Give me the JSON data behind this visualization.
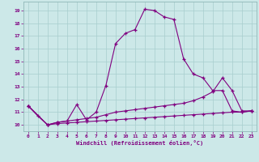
{
  "xlabel": "Windchill (Refroidissement éolien,°C)",
  "background_color": "#cce8e8",
  "line_color": "#800080",
  "xlim": [
    -0.5,
    23.5
  ],
  "ylim": [
    9.5,
    19.7
  ],
  "yticks": [
    10,
    11,
    12,
    13,
    14,
    15,
    16,
    17,
    18,
    19
  ],
  "xticks": [
    0,
    1,
    2,
    3,
    4,
    5,
    6,
    7,
    8,
    9,
    10,
    11,
    12,
    13,
    14,
    15,
    16,
    17,
    18,
    19,
    20,
    21,
    22,
    23
  ],
  "series1_x": [
    0,
    1,
    2,
    3,
    4,
    5,
    6,
    7,
    8,
    9,
    10,
    11,
    12,
    13,
    14,
    15,
    16,
    17,
    18,
    19,
    20,
    21,
    22,
    23
  ],
  "series1_y": [
    11.5,
    10.7,
    10.0,
    10.2,
    10.3,
    11.6,
    10.4,
    11.0,
    13.1,
    16.4,
    17.2,
    17.5,
    19.1,
    19.0,
    18.5,
    18.3,
    15.2,
    14.0,
    13.7,
    12.7,
    12.7,
    11.1,
    11.0,
    11.1
  ],
  "series2_x": [
    0,
    2,
    3,
    4,
    5,
    6,
    7,
    8,
    9,
    10,
    11,
    12,
    13,
    14,
    15,
    16,
    17,
    18,
    19,
    20,
    21,
    22,
    23
  ],
  "series2_y": [
    11.5,
    10.0,
    10.2,
    10.3,
    10.4,
    10.5,
    10.6,
    10.8,
    11.0,
    11.1,
    11.2,
    11.3,
    11.4,
    11.5,
    11.6,
    11.7,
    11.9,
    12.2,
    12.6,
    13.7,
    12.7,
    11.1,
    11.1
  ],
  "series3_x": [
    0,
    2,
    3,
    4,
    5,
    6,
    7,
    8,
    9,
    10,
    11,
    12,
    13,
    14,
    15,
    16,
    17,
    18,
    19,
    20,
    21,
    22,
    23
  ],
  "series3_y": [
    11.5,
    10.0,
    10.1,
    10.15,
    10.2,
    10.25,
    10.3,
    10.35,
    10.4,
    10.45,
    10.5,
    10.55,
    10.6,
    10.65,
    10.7,
    10.75,
    10.8,
    10.85,
    10.9,
    10.95,
    11.0,
    11.0,
    11.1
  ]
}
